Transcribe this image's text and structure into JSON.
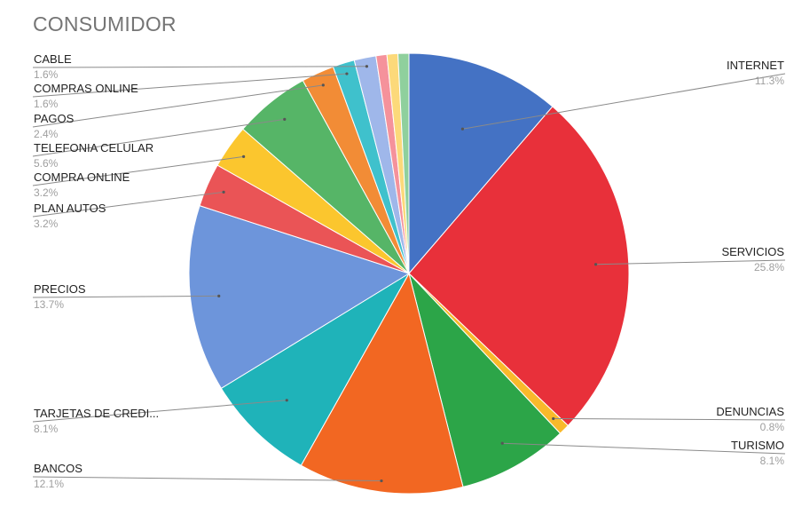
{
  "chart_data": {
    "type": "pie",
    "title": "CONSUMIDOR",
    "slices": [
      {
        "label": "INTERNET",
        "pct_label": "11.3%",
        "value": 11.3,
        "color": "#4472c4"
      },
      {
        "label": "SERVICIOS",
        "pct_label": "25.8%",
        "value": 25.8,
        "color": "#e8303a"
      },
      {
        "label": "DENUNCIAS",
        "pct_label": "0.8%",
        "value": 0.8,
        "color": "#f9b92b"
      },
      {
        "label": "TURISMO",
        "pct_label": "8.1%",
        "value": 8.1,
        "color": "#2ca548"
      },
      {
        "label": "BANCOS",
        "pct_label": "12.1%",
        "value": 12.1,
        "color": "#f26722"
      },
      {
        "label": "TARJETAS DE CREDI...",
        "pct_label": "8.1%",
        "value": 8.1,
        "color": "#1fb3b9"
      },
      {
        "label": "PRECIOS",
        "pct_label": "13.7%",
        "value": 13.7,
        "color": "#6d95db"
      },
      {
        "label": "PLAN AUTOS",
        "pct_label": "3.2%",
        "value": 3.2,
        "color": "#ea5456"
      },
      {
        "label": "COMPRA ONLINE",
        "pct_label": "3.2%",
        "value": 3.2,
        "color": "#fbc62e"
      },
      {
        "label": "TELEFONIA CELULAR",
        "pct_label": "5.6%",
        "value": 5.6,
        "color": "#56b567"
      },
      {
        "label": "PAGOS",
        "pct_label": "2.4%",
        "value": 2.4,
        "color": "#f28c36"
      },
      {
        "label": "COMPRAS ONLINE",
        "pct_label": "1.6%",
        "value": 1.6,
        "color": "#3fc1cc"
      },
      {
        "label": "CABLE",
        "pct_label": "1.6%",
        "value": 1.6,
        "color": "#9fb7ea"
      },
      {
        "label": "",
        "pct_label": "",
        "value": 0.8,
        "color": "#f5929b"
      },
      {
        "label": "",
        "pct_label": "",
        "value": 0.8,
        "color": "#fcd97a"
      },
      {
        "label": "",
        "pct_label": "",
        "value": 0.8,
        "color": "#8fd09d"
      }
    ]
  }
}
